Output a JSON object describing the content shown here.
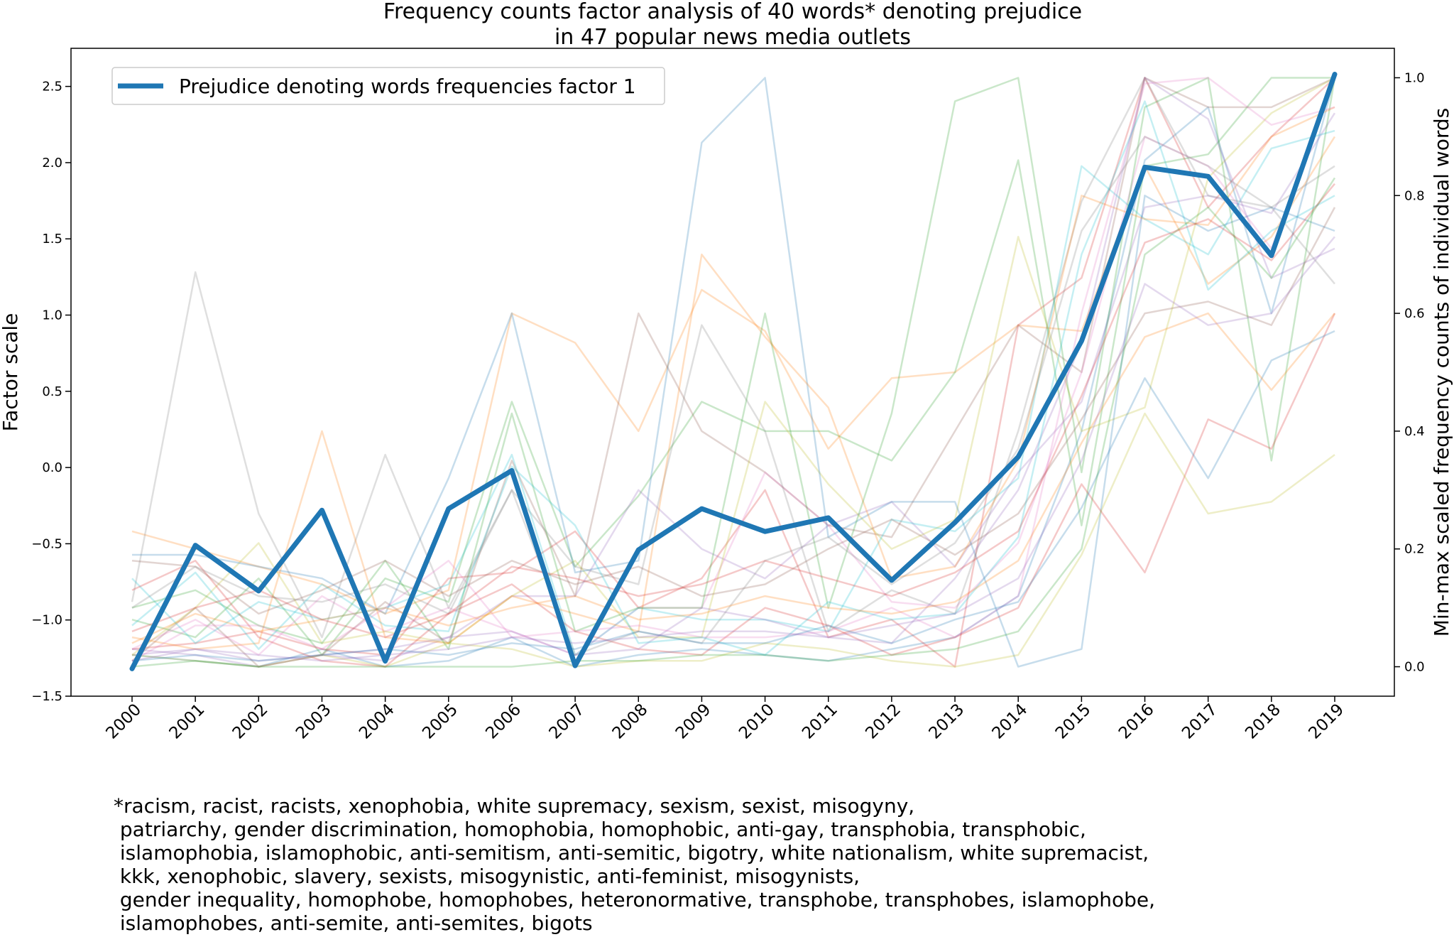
{
  "chart_data": {
    "type": "line",
    "title": [
      "Frequency counts factor analysis of 40 words* denoting prejudice",
      "in 47 popular news media outlets"
    ],
    "ylabel_left": "Factor scale",
    "ylabel_right": "Min-max scaled frequency counts of individual words",
    "x": [
      "2000",
      "2001",
      "2002",
      "2003",
      "2004",
      "2005",
      "2006",
      "2007",
      "2008",
      "2009",
      "2010",
      "2011",
      "2012",
      "2013",
      "2014",
      "2015",
      "2016",
      "2017",
      "2018",
      "2019"
    ],
    "ylim_left": [
      -1.5,
      2.75
    ],
    "yticks_left": [
      "2.5",
      "2.0",
      "1.5",
      "1.0",
      "0.5",
      "0.0",
      "−0.5",
      "−1.0",
      "−1.5"
    ],
    "ylim_right": [
      -0.05,
      1.05
    ],
    "yticks_right": [
      "1.0",
      "0.8",
      "0.6",
      "0.4",
      "0.2",
      "0.0"
    ],
    "legend_position": "top-left",
    "grid": false,
    "main_series": {
      "name": "Prejudice denoting words frequencies factor 1",
      "color": "#1f77b4",
      "values": [
        -1.32,
        -0.51,
        -0.81,
        -0.28,
        -1.27,
        -0.27,
        -0.02,
        -1.3,
        -0.54,
        -0.27,
        -0.42,
        -0.33,
        -0.74,
        -0.36,
        0.07,
        0.83,
        1.97,
        1.91,
        1.39,
        2.58
      ]
    },
    "background_series_color_cycle": [
      "#1f77b4",
      "#ff7f0e",
      "#2ca02c",
      "#d62728",
      "#9467bd",
      "#8c564b",
      "#e377c2",
      "#7f7f7f",
      "#bcbd22",
      "#17becf"
    ],
    "background_series": [
      [
        0.02,
        0.01,
        0.0,
        0.03,
        0.0,
        0.01,
        0.05,
        0.0,
        0.02,
        0.03,
        0.02,
        0.01,
        0.03,
        0.05,
        0.12,
        0.4,
        0.86,
        0.95,
        0.6,
        1.0
      ],
      [
        0.23,
        0.2,
        0.17,
        0.14,
        0.09,
        0.13,
        0.6,
        0.55,
        0.4,
        0.64,
        0.57,
        0.37,
        0.49,
        0.5,
        0.58,
        0.57,
        0.85,
        0.65,
        0.73,
        0.9
      ],
      [
        0.08,
        0.05,
        0.15,
        0.02,
        0.15,
        0.11,
        0.45,
        0.17,
        0.29,
        0.45,
        0.4,
        0.4,
        0.35,
        0.5,
        0.86,
        0.24,
        0.85,
        0.87,
        1.0,
        1.0
      ],
      [
        0.03,
        0.04,
        0.06,
        0.03,
        0.02,
        0.15,
        0.16,
        0.23,
        0.1,
        0.15,
        0.3,
        0.05,
        0.08,
        0.0,
        0.58,
        0.66,
        1.0,
        0.78,
        0.9,
        1.0
      ],
      [
        0.02,
        0.03,
        0.01,
        0.02,
        0.01,
        0.05,
        0.12,
        0.12,
        0.3,
        0.2,
        0.15,
        0.24,
        0.28,
        0.17,
        0.33,
        0.45,
        0.78,
        0.8,
        0.77,
        0.94
      ],
      [
        0.01,
        0.1,
        0.0,
        0.02,
        0.11,
        0.04,
        0.35,
        0.12,
        0.6,
        0.4,
        0.33,
        0.24,
        0.22,
        0.4,
        0.58,
        0.5,
        1.0,
        0.95,
        0.95,
        1.0
      ],
      [
        0.03,
        0.08,
        0.02,
        0.12,
        0.06,
        0.1,
        0.06,
        0.02,
        0.1,
        0.1,
        0.33,
        0.24,
        0.11,
        0.1,
        0.21,
        0.5,
        0.9,
        0.85,
        0.71,
        1.0
      ],
      [
        0.11,
        0.67,
        0.26,
        0.05,
        0.36,
        0.1,
        0.3,
        0.17,
        0.14,
        0.58,
        0.4,
        0.06,
        0.13,
        0.09,
        0.4,
        0.79,
        1.0,
        0.8,
        0.78,
        0.85
      ],
      [
        0.02,
        0.1,
        0.21,
        0.04,
        0.06,
        0.04,
        0.12,
        0.18,
        0.05,
        0.05,
        0.45,
        0.31,
        0.2,
        0.25,
        0.73,
        0.4,
        0.44,
        0.83,
        0.94,
        1.0
      ],
      [
        0.15,
        0.04,
        0.11,
        0.08,
        0.1,
        0.14,
        0.36,
        0.02,
        0.1,
        0.08,
        0.08,
        0.06,
        0.25,
        0.23,
        0.32,
        0.85,
        0.76,
        0.7,
        0.88,
        0.91
      ],
      [
        0.19,
        0.19,
        0.17,
        0.15,
        0.09,
        0.32,
        0.6,
        0.16,
        0.18,
        0.89,
        1.0,
        0.22,
        0.28,
        0.28,
        0.0,
        0.03,
        0.8,
        0.74,
        0.78,
        0.74
      ],
      [
        0.05,
        0.03,
        0.04,
        0.4,
        0.05,
        0.04,
        0.12,
        0.09,
        0.06,
        0.7,
        0.56,
        0.44,
        0.15,
        0.17,
        0.35,
        0.8,
        0.76,
        0.75,
        0.9,
        0.95
      ],
      [
        0.1,
        0.13,
        0.07,
        0.04,
        0.18,
        0.03,
        0.43,
        0.06,
        0.1,
        0.1,
        0.6,
        0.1,
        0.43,
        0.96,
        1.0,
        0.33,
        0.95,
        1.0,
        0.35,
        1.0
      ],
      [
        0.13,
        0.18,
        0.05,
        0.01,
        0.0,
        0.09,
        0.14,
        0.06,
        0.03,
        0.02,
        0.1,
        0.07,
        0.02,
        0.05,
        0.1,
        0.31,
        0.16,
        0.42,
        0.37,
        0.6
      ],
      [
        0.03,
        0.02,
        0.0,
        0.02,
        0.03,
        0.05,
        0.06,
        0.02,
        0.03,
        0.1,
        0.08,
        0.05,
        0.04,
        0.15,
        0.3,
        0.55,
        1.0,
        0.93,
        0.66,
        0.71
      ],
      [
        0.18,
        0.17,
        0.09,
        0.13,
        0.18,
        0.12,
        0.18,
        0.14,
        0.17,
        0.12,
        0.14,
        0.2,
        0.25,
        0.19,
        0.26,
        0.42,
        0.6,
        0.62,
        0.58,
        0.78
      ],
      [
        0.01,
        0.07,
        0.07,
        0.03,
        0.1,
        0.18,
        0.05,
        0.06,
        0.07,
        0.05,
        0.05,
        0.06,
        0.1,
        0.05,
        0.12,
        0.6,
        0.99,
        1.0,
        0.92,
        0.95
      ],
      [
        0.1,
        0.17,
        0.12,
        0.11,
        0.14,
        0.09,
        0.3,
        0.02,
        0.06,
        0.04,
        0.18,
        0.22,
        0.14,
        0.21,
        0.37,
        0.74,
        0.9,
        0.85,
        0.78,
        0.65
      ],
      [
        0.02,
        0.01,
        0.0,
        0.02,
        0.0,
        0.04,
        0.03,
        0.0,
        0.01,
        0.01,
        0.04,
        0.03,
        0.01,
        0.0,
        0.02,
        0.19,
        0.43,
        0.26,
        0.28,
        0.36
      ],
      [
        0.07,
        0.16,
        0.03,
        0.14,
        0.07,
        0.06,
        0.34,
        0.24,
        0.04,
        0.05,
        0.02,
        0.11,
        0.08,
        0.09,
        0.22,
        0.7,
        0.96,
        0.64,
        0.74,
        0.8
      ],
      [
        0.01,
        0.02,
        0.01,
        0.02,
        0.03,
        0.02,
        0.04,
        0.03,
        0.06,
        0.04,
        0.04,
        0.07,
        0.04,
        0.08,
        0.11,
        0.27,
        0.49,
        0.32,
        0.52,
        0.57
      ],
      [
        0.04,
        0.09,
        0.06,
        0.08,
        0.1,
        0.07,
        0.1,
        0.12,
        0.08,
        0.09,
        0.12,
        0.1,
        0.09,
        0.11,
        0.18,
        0.38,
        0.56,
        0.6,
        0.47,
        0.6
      ],
      [
        0.0,
        0.01,
        0.0,
        0.0,
        0.0,
        0.0,
        0.0,
        0.01,
        0.01,
        0.02,
        0.02,
        0.01,
        0.02,
        0.03,
        0.06,
        0.2,
        0.7,
        0.78,
        0.66,
        0.83
      ],
      [
        0.06,
        0.1,
        0.13,
        0.08,
        0.05,
        0.09,
        0.17,
        0.15,
        0.12,
        0.14,
        0.18,
        0.15,
        0.12,
        0.16,
        0.23,
        0.46,
        0.72,
        0.76,
        0.69,
        0.82
      ],
      [
        0.01,
        0.03,
        0.02,
        0.01,
        0.02,
        0.03,
        0.05,
        0.04,
        0.05,
        0.06,
        0.06,
        0.05,
        0.07,
        0.09,
        0.15,
        0.35,
        0.65,
        0.58,
        0.6,
        0.73
      ]
    ]
  },
  "footnote": [
    "*racism, racist, racists, xenophobia, white supremacy, sexism, sexist, misogyny,",
    " patriarchy, gender discrimination, homophobia, homophobic, anti-gay, transphobia, transphobic,",
    " islamophobia, islamophobic, anti-semitism, anti-semitic, bigotry, white nationalism, white supremacist,",
    " kkk, xenophobic, slavery, sexists, misogynistic, anti-feminist, misogynists,",
    " gender inequality, homophobe, homophobes, heteronormative, transphobe, transphobes, islamophobe,",
    " islamophobes, anti-semite, anti-semites, bigots"
  ]
}
